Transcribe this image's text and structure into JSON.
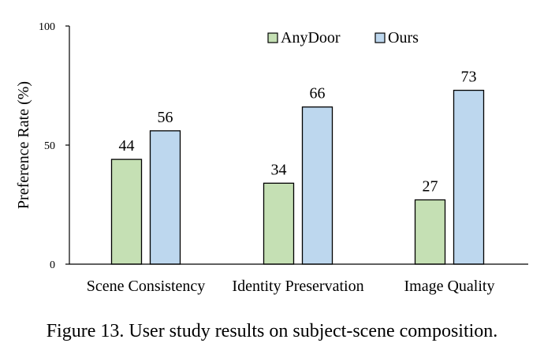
{
  "chart_data": {
    "type": "bar",
    "categories": [
      "Scene Consistency",
      "Identity Preservation",
      "Image Quality"
    ],
    "series": [
      {
        "name": "AnyDoor",
        "values": [
          44,
          34,
          27
        ],
        "color": "#c5e0b4"
      },
      {
        "name": "Ours",
        "values": [
          56,
          66,
          73
        ],
        "color": "#bdd7ee"
      }
    ],
    "ylabel": "Preference Rate (%)",
    "xlabel": "",
    "ylim": [
      0,
      100
    ],
    "yticks": [
      0,
      50,
      100
    ],
    "grid": false,
    "legend_position": "top-right",
    "bar_outline_color": "#000000"
  },
  "caption": "Figure 13. User study results on subject-scene composition."
}
